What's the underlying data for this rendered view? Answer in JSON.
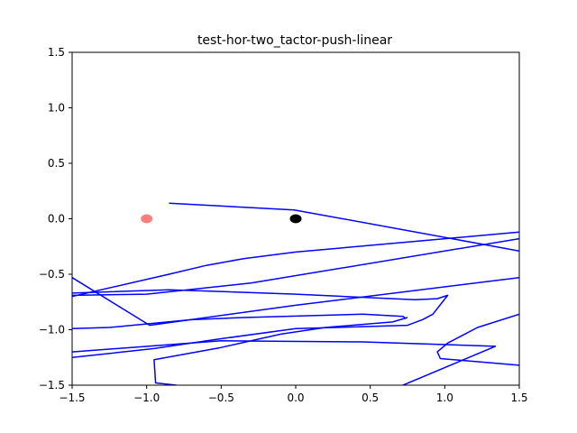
{
  "chart_data": {
    "type": "line",
    "title": "test-hor-two_tactor-push-linear",
    "xlabel": "",
    "ylabel": "",
    "xlim": [
      -1.5,
      1.5
    ],
    "ylim": [
      -1.5,
      1.5
    ],
    "grid": false,
    "x_ticks": [
      "-1.5",
      "-1.0",
      "-0.5",
      "0.0",
      "0.5",
      "1.0",
      "1.5"
    ],
    "y_ticks": [
      "1.5",
      "1.0",
      "0.5",
      "0.0",
      "-0.5",
      "-1.0",
      "-1.5"
    ],
    "line_color": "#0000ff",
    "trajectory": [
      [
        -0.85,
        0.14
      ],
      [
        -0.01,
        0.08
      ],
      [
        1.5,
        -0.29
      ]
    ],
    "trajectory_segments": [
      [
        [
          -0.85,
          0.14
        ],
        [
          -0.01,
          0.08
        ],
        [
          1.5,
          -0.29
        ]
      ],
      [
        [
          1.5,
          -0.12
        ],
        [
          0.0,
          -0.3
        ],
        [
          -0.35,
          -0.36
        ],
        [
          -0.6,
          -0.42
        ],
        [
          -0.85,
          -0.5
        ],
        [
          -1.5,
          -0.7
        ]
      ],
      [
        [
          1.5,
          -0.18
        ],
        [
          -0.3,
          -0.58
        ],
        [
          -1.0,
          -0.68
        ],
        [
          -1.5,
          -0.69
        ]
      ],
      [
        [
          1.5,
          -0.53
        ],
        [
          0.0,
          -0.78
        ],
        [
          -0.98,
          -0.96
        ],
        [
          -1.5,
          -0.53
        ]
      ],
      [
        [
          -1.5,
          -0.67
        ],
        [
          -0.85,
          -0.64
        ],
        [
          0.0,
          -0.68
        ],
        [
          0.8,
          -0.73
        ],
        [
          0.95,
          -0.72
        ],
        [
          1.02,
          -0.69
        ],
        [
          0.92,
          -0.86
        ],
        [
          0.85,
          -0.91
        ],
        [
          0.75,
          -0.96
        ],
        [
          0.0,
          -0.99
        ],
        [
          -0.55,
          -1.09
        ],
        [
          -0.95,
          -1.17
        ],
        [
          -1.5,
          -1.25
        ]
      ],
      [
        [
          -1.5,
          -0.99
        ],
        [
          -1.25,
          -0.98
        ],
        [
          -0.7,
          -0.91
        ],
        [
          -0.35,
          -0.89
        ],
        [
          -0.08,
          -0.88
        ],
        [
          0.45,
          -0.86
        ],
        [
          0.72,
          -0.88
        ],
        [
          0.74,
          -0.9
        ]
      ],
      [
        [
          -1.5,
          -1.2
        ],
        [
          -0.5,
          -1.1
        ],
        [
          0.45,
          -1.11
        ],
        [
          1.34,
          -1.15
        ],
        [
          0.72,
          -1.5
        ]
      ],
      [
        [
          1.5,
          -0.86
        ],
        [
          1.22,
          -0.98
        ],
        [
          1.02,
          -1.12
        ],
        [
          0.95,
          -1.2
        ],
        [
          0.97,
          -1.26
        ],
        [
          1.5,
          -1.32
        ]
      ],
      [
        [
          -0.8,
          -1.5
        ],
        [
          -0.94,
          -1.48
        ],
        [
          -0.95,
          -1.27
        ],
        [
          -0.5,
          -1.16
        ],
        [
          -0.1,
          -1.04
        ],
        [
          0.2,
          -0.98
        ],
        [
          0.65,
          -0.93
        ],
        [
          0.75,
          -0.89
        ]
      ],
      [
        [
          1.5,
          -0.85
        ]
      ]
    ],
    "markers": [
      {
        "label": "",
        "x": -1.0,
        "y": 0.0,
        "color": "#ff7f7f"
      },
      {
        "label": "",
        "x": 0.0,
        "y": 0.0,
        "color": "#000000"
      }
    ]
  }
}
